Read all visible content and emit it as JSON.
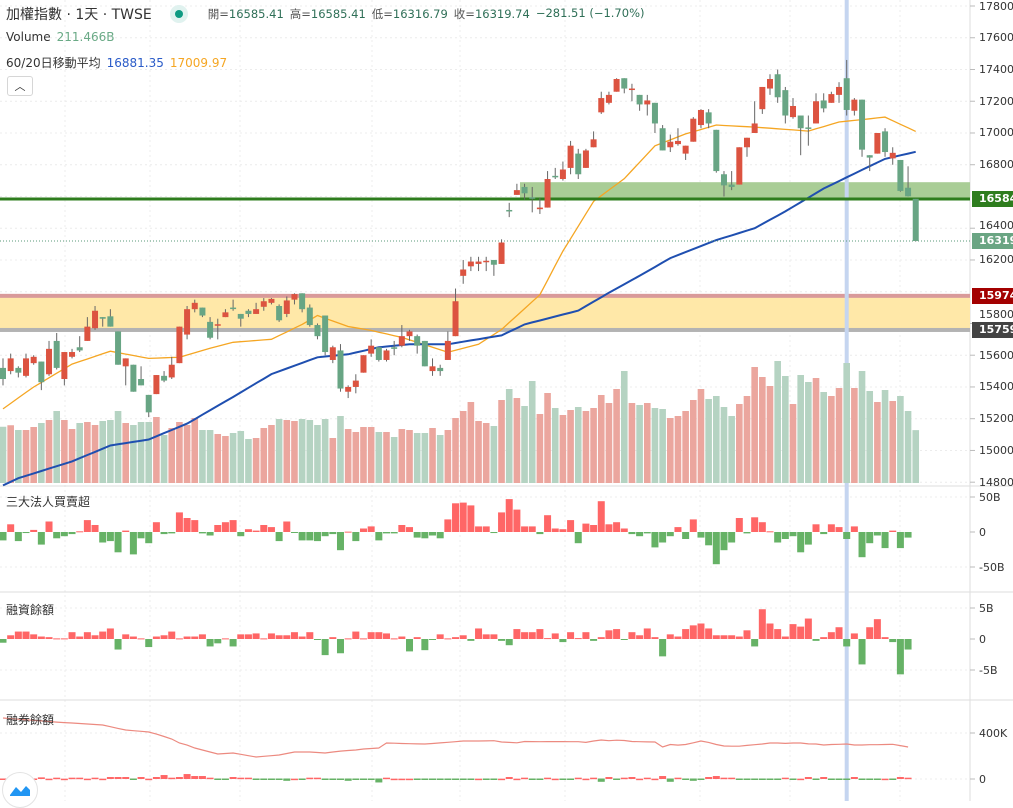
{
  "header": {
    "title": "加權指數 · 1天 · TWSE",
    "open_label": "開=",
    "open": "16585.41",
    "high_label": "高=",
    "high": "16585.41",
    "low_label": "低=",
    "low": "16316.79",
    "close_label": "收=",
    "close": "16319.74",
    "change": "−281.51 (−1.70%)",
    "volume_label": "Volume",
    "volume": "211.466B",
    "ma_label": "60/20日移動平均",
    "ma60": "16881.35",
    "ma20": "17009.97",
    "collapse_icon": "chevron-up-icon"
  },
  "colors": {
    "up": "#dc5340",
    "down": "#68a584",
    "vol_up": "#eba69e",
    "vol_down": "#b5d3c2",
    "ma60": "#1f4fb0",
    "ma20": "#f5a623",
    "inst_up": "#ff6666",
    "inst_down": "#66b266",
    "support": "#2e7d1e",
    "zone": "#ffe8a8"
  },
  "panes": {
    "inst_label": "三大法人買賣超",
    "margin_label": "融資餘額",
    "short_label": "融券餘額"
  },
  "price_axis": [
    "17800.00",
    "17600.00",
    "17400.00",
    "17200.00",
    "17000.00",
    "16800.00",
    "16400.00",
    "16200.00",
    "15800.00",
    "15600.00",
    "15400.00",
    "15200.00",
    "15000.00",
    "14800.00"
  ],
  "inst_axis": [
    "50B",
    "0",
    "-50B"
  ],
  "margin_axis": [
    "5B",
    "0",
    "-5B"
  ],
  "short_axis": [
    "400K",
    "0"
  ],
  "badges": [
    {
      "text": "16584.",
      "price": 16584,
      "color": "#2e7d1e"
    },
    {
      "text": "16319.",
      "price": 16319.74,
      "color": "#6aa583"
    },
    {
      "text": "15974.",
      "price": 15974,
      "color": "#a30000"
    },
    {
      "text": "15759.",
      "price": 15759,
      "color": "#434343"
    }
  ],
  "chart_data": {
    "type": "candlestick",
    "price_range": [
      14800,
      17800
    ],
    "levels": {
      "support": 16584,
      "support_zone": [
        16584,
        16690
      ],
      "zone": [
        15759,
        15974
      ],
      "last": 16319.74
    },
    "highlight_index": 110,
    "ohlc": [
      [
        15520,
        15580,
        15410,
        15450
      ],
      [
        15500,
        15610,
        15480,
        15580
      ],
      [
        15520,
        15530,
        15460,
        15490
      ],
      [
        15470,
        15610,
        15460,
        15580
      ],
      [
        15550,
        15600,
        15540,
        15590
      ],
      [
        15560,
        15560,
        15380,
        15430
      ],
      [
        15480,
        15690,
        15470,
        15640
      ],
      [
        15690,
        15740,
        15510,
        15520
      ],
      [
        15450,
        15620,
        15410,
        15620
      ],
      [
        15590,
        15640,
        15580,
        15620
      ],
      [
        15650,
        15720,
        15620,
        15630
      ],
      [
        15690,
        15840,
        15690,
        15780
      ],
      [
        15770,
        15910,
        15760,
        15880
      ],
      [
        15840,
        15840,
        15780,
        15830
      ],
      [
        15845,
        15890,
        15780,
        15780
      ],
      [
        15750,
        15750,
        15540,
        15540
      ],
      [
        15530,
        15580,
        15410,
        15580
      ],
      [
        15540,
        15540,
        15370,
        15370
      ],
      [
        15450,
        15530,
        15410,
        15410
      ],
      [
        15350,
        15350,
        15210,
        15240
      ],
      [
        15355,
        15475,
        15355,
        15475
      ],
      [
        15470,
        15500,
        15430,
        15440
      ],
      [
        15460,
        15590,
        15450,
        15540
      ],
      [
        15550,
        15780,
        15550,
        15780
      ],
      [
        15730,
        15910,
        15700,
        15890
      ],
      [
        15890,
        15950,
        15870,
        15930
      ],
      [
        15900,
        15900,
        15840,
        15850
      ],
      [
        15810,
        15840,
        15700,
        15710
      ],
      [
        15790,
        15830,
        15700,
        15795
      ],
      [
        15840,
        15890,
        15840,
        15870
      ],
      [
        15900,
        15950,
        15880,
        15895
      ],
      [
        15860,
        15860,
        15780,
        15830
      ],
      [
        15880,
        15890,
        15840,
        15860
      ],
      [
        15860,
        15930,
        15860,
        15890
      ],
      [
        15905,
        15960,
        15880,
        15940
      ],
      [
        15930,
        15960,
        15920,
        15955
      ],
      [
        15910,
        15920,
        15810,
        15820
      ],
      [
        15860,
        15970,
        15840,
        15945
      ],
      [
        15950,
        15990,
        15920,
        15985
      ],
      [
        15990,
        15990,
        15870,
        15890
      ],
      [
        15900,
        15920,
        15780,
        15790
      ],
      [
        15790,
        15800,
        15700,
        15720
      ],
      [
        15850,
        15850,
        15600,
        15620
      ],
      [
        15570,
        15660,
        15550,
        15650
      ],
      [
        15630,
        15670,
        15370,
        15390
      ],
      [
        15370,
        15410,
        15330,
        15400
      ],
      [
        15400,
        15480,
        15360,
        15440
      ],
      [
        15490,
        15600,
        15490,
        15600
      ],
      [
        15610,
        15700,
        15590,
        15660
      ],
      [
        15650,
        15650,
        15560,
        15570
      ],
      [
        15570,
        15640,
        15560,
        15630
      ],
      [
        15650,
        15690,
        15600,
        15640
      ],
      [
        15660,
        15790,
        15650,
        15720
      ],
      [
        15720,
        15760,
        15690,
        15750
      ],
      [
        15720,
        15730,
        15610,
        15660
      ],
      [
        15690,
        15690,
        15530,
        15530
      ],
      [
        15500,
        15580,
        15470,
        15530
      ],
      [
        15520,
        15540,
        15470,
        15500
      ],
      [
        15570,
        15750,
        15570,
        15690
      ],
      [
        15720,
        16020,
        15720,
        15940
      ],
      [
        16100,
        16200,
        16050,
        16140
      ],
      [
        16160,
        16220,
        16130,
        16190
      ],
      [
        16175,
        16220,
        16130,
        16190
      ],
      [
        16190,
        16220,
        16130,
        16195
      ],
      [
        16200,
        16200,
        16100,
        16170
      ],
      [
        16175,
        16330,
        16175,
        16310
      ],
      [
        16515,
        16560,
        16470,
        16510
      ],
      [
        16610,
        16680,
        16610,
        16640
      ],
      [
        16660,
        16680,
        16580,
        16620
      ],
      [
        16595,
        16660,
        16500,
        16590
      ],
      [
        16520,
        16590,
        16490,
        16530
      ],
      [
        16530,
        16760,
        16530,
        16710
      ],
      [
        16730,
        16780,
        16710,
        16725
      ],
      [
        16710,
        16820,
        16700,
        16770
      ],
      [
        16780,
        16950,
        16740,
        16920
      ],
      [
        16870,
        16900,
        16710,
        16740
      ],
      [
        16780,
        16900,
        16780,
        16890
      ],
      [
        16910,
        17010,
        16910,
        16960
      ],
      [
        17130,
        17260,
        17120,
        17220
      ],
      [
        17190,
        17260,
        17180,
        17240
      ],
      [
        17260,
        17345,
        17260,
        17340
      ],
      [
        17345,
        17345,
        17250,
        17280
      ],
      [
        17275,
        17310,
        17200,
        17280
      ],
      [
        17240,
        17240,
        17140,
        17180
      ],
      [
        17180,
        17240,
        17110,
        17205
      ],
      [
        17190,
        17190,
        17000,
        17060
      ],
      [
        17030,
        17050,
        16890,
        16890
      ],
      [
        16910,
        16990,
        16880,
        16945
      ],
      [
        16930,
        17030,
        16920,
        16950
      ],
      [
        16870,
        16920,
        16830,
        16920
      ],
      [
        16945,
        17100,
        16945,
        17090
      ],
      [
        17050,
        17150,
        17030,
        17145
      ],
      [
        17130,
        17150,
        17030,
        17060
      ],
      [
        17020,
        17020,
        16750,
        16760
      ],
      [
        16740,
        16760,
        16600,
        16670
      ],
      [
        16675,
        16760,
        16640,
        16660
      ],
      [
        16675,
        16910,
        16675,
        16910
      ],
      [
        16910,
        16970,
        16850,
        16970
      ],
      [
        17000,
        17200,
        17000,
        17060
      ],
      [
        17150,
        17290,
        17120,
        17290
      ],
      [
        17280,
        17370,
        17240,
        17340
      ],
      [
        17370,
        17400,
        17190,
        17225
      ],
      [
        17270,
        17290,
        17060,
        17110
      ],
      [
        17100,
        17220,
        17090,
        17170
      ],
      [
        17110,
        17110,
        16860,
        17030
      ],
      [
        17035,
        17110,
        16920,
        17030
      ],
      [
        17060,
        17250,
        17060,
        17200
      ],
      [
        17205,
        17250,
        17130,
        17155
      ],
      [
        17190,
        17260,
        17190,
        17245
      ],
      [
        17240,
        17320,
        17190,
        17290
      ],
      [
        17345,
        17460,
        17110,
        17145
      ],
      [
        17140,
        17220,
        17110,
        17210
      ],
      [
        17210,
        17210,
        16850,
        16895
      ],
      [
        16860,
        16860,
        16760,
        16845
      ],
      [
        16870,
        17000,
        16870,
        17000
      ],
      [
        17010,
        17030,
        16850,
        16880
      ],
      [
        16840,
        16910,
        16800,
        16875
      ],
      [
        16830,
        16830,
        16630,
        16635
      ],
      [
        16655,
        16790,
        16600,
        16601.25
      ],
      [
        16585.41,
        16585.41,
        16316.79,
        16319.74
      ]
    ],
    "volume_B": [
      225,
      231,
      212,
      212,
      224,
      240,
      252,
      288,
      252,
      216,
      240,
      244,
      232,
      248,
      252,
      288,
      240,
      232,
      244,
      244,
      264,
      192,
      220,
      244,
      232,
      260,
      212,
      212,
      196,
      188,
      200,
      208,
      176,
      180,
      220,
      232,
      256,
      252,
      248,
      256,
      252,
      232,
      256,
      180,
      268,
      216,
      204,
      224,
      224,
      204,
      204,
      184,
      216,
      212,
      200,
      200,
      220,
      192,
      212,
      260,
      288,
      324,
      248,
      240,
      228,
      332,
      376,
      340,
      308,
      408,
      276,
      360,
      300,
      272,
      292,
      304,
      288,
      300,
      352,
      320,
      376,
      448,
      320,
      312,
      320,
      300,
      296,
      260,
      268,
      288,
      332,
      376,
      336,
      348,
      304,
      268,
      316,
      348,
      464,
      424,
      388,
      488,
      428,
      316,
      432,
      404,
      420,
      364,
      348,
      380,
      480,
      380,
      448,
      368,
      324,
      372,
      328,
      348,
      288,
      211.466
    ],
    "ma20": [
      [
        0,
        15262
      ],
      [
        4,
        15400
      ],
      [
        9,
        15544
      ],
      [
        14,
        15625
      ],
      [
        19,
        15580
      ],
      [
        23,
        15587
      ],
      [
        27,
        15644
      ],
      [
        30,
        15681
      ],
      [
        35,
        15700
      ],
      [
        39,
        15794
      ],
      [
        41,
        15850
      ],
      [
        45,
        15781
      ],
      [
        48,
        15756
      ],
      [
        52,
        15712
      ],
      [
        58,
        15619
      ],
      [
        62,
        15669
      ],
      [
        65,
        15762
      ],
      [
        70,
        15981
      ],
      [
        73,
        16256
      ],
      [
        77,
        16569
      ],
      [
        81,
        16712
      ],
      [
        85,
        16919
      ],
      [
        89,
        16994
      ],
      [
        93,
        17050
      ],
      [
        98,
        17037
      ],
      [
        105,
        17012
      ],
      [
        109,
        17069
      ],
      [
        115,
        17100
      ],
      [
        119,
        17009.97
      ]
    ],
    "ma60": [
      [
        0,
        14780
      ],
      [
        2,
        14825
      ],
      [
        9,
        14931
      ],
      [
        14,
        15031
      ],
      [
        19,
        15069
      ],
      [
        24,
        15169
      ],
      [
        30,
        15337
      ],
      [
        35,
        15481
      ],
      [
        41,
        15587
      ],
      [
        45,
        15606
      ],
      [
        49,
        15650
      ],
      [
        53,
        15669
      ],
      [
        58,
        15669
      ],
      [
        65,
        15725
      ],
      [
        68,
        15794
      ],
      [
        75,
        15881
      ],
      [
        79,
        15994
      ],
      [
        83,
        16100
      ],
      [
        87,
        16212
      ],
      [
        93,
        16325
      ],
      [
        98,
        16400
      ],
      [
        102,
        16506
      ],
      [
        107,
        16650
      ],
      [
        111,
        16744
      ],
      [
        115,
        16837
      ],
      [
        119,
        16881.35
      ]
    ],
    "inst_net_B": [
      -12,
      11,
      -13,
      -1.5,
      3,
      -18,
      15,
      -9,
      -6,
      -3,
      1,
      17,
      10,
      -15,
      -13,
      -29,
      2,
      -32,
      -9,
      -16,
      14,
      -3,
      -2,
      28,
      20,
      17,
      -2,
      -5,
      10,
      14,
      17,
      -6,
      4,
      2,
      10,
      7,
      -13,
      15,
      -0.5,
      -12,
      -12,
      -13,
      -6,
      -3,
      -26,
      0.5,
      -13,
      5,
      8,
      -12,
      -2,
      -2,
      10,
      7,
      -8,
      -9,
      -5,
      -9,
      18,
      41,
      42,
      38,
      8,
      8,
      -1.5,
      28,
      47,
      32,
      8,
      8,
      -3,
      24,
      5,
      4,
      17,
      -16,
      12,
      10,
      44,
      11,
      14,
      5,
      -3,
      -6,
      -2,
      -22,
      -15,
      -6,
      7,
      -10,
      18,
      -8,
      -19,
      -46,
      -26,
      -15,
      20,
      -2,
      21,
      14,
      1,
      -15,
      -10,
      -6,
      -29,
      -18,
      11,
      -3,
      11,
      7,
      -10,
      8,
      -36,
      -16,
      -5,
      -23,
      2,
      -23,
      -8,
      null
    ],
    "margin_change_B": [
      -0.6,
      0.6,
      1.2,
      1.2,
      0.75,
      0.4,
      0.3,
      0.1,
      0.1,
      1.1,
      0.4,
      1.1,
      0.6,
      1.2,
      1.7,
      -1.7,
      0.75,
      0.4,
      0.1,
      -1.3,
      0.4,
      0.6,
      1.2,
      0.1,
      0.4,
      0.4,
      0.75,
      -1.2,
      -0.7,
      0.1,
      -1.2,
      0.75,
      0.75,
      0.9,
      0.1,
      0.9,
      0.6,
      0.6,
      1.1,
      0.4,
      1.1,
      -0.1,
      -2.6,
      0.3,
      -2.3,
      0.1,
      1.2,
      0.1,
      1.1,
      1.1,
      0.9,
      0.1,
      0.4,
      -2.0,
      0.3,
      -1.8,
      -0.1,
      0.75,
      0.1,
      0.3,
      0.6,
      -0.3,
      1.7,
      0.75,
      0.75,
      -0.3,
      -1.0,
      1.6,
      1.1,
      1.1,
      1.6,
      0.15,
      0.9,
      -0.5,
      1.1,
      0.15,
      1.1,
      -0.3,
      0.3,
      1.4,
      1.6,
      -0.1,
      1.1,
      0.6,
      1.7,
      0.3,
      -2.8,
      0.75,
      0.4,
      1.6,
      2.2,
      2.5,
      1.7,
      0.6,
      0.6,
      0.6,
      0.4,
      1.4,
      -1.2,
      4.8,
      2.5,
      1.6,
      0.4,
      2.4,
      2.0,
      3.3,
      -0.3,
      0.3,
      1.1,
      1.9,
      -1.2,
      0.9,
      -4.1,
      1.9,
      3.2,
      0.3,
      -0.5,
      -5.7,
      -1.7,
      null
    ],
    "short_balance_K": [
      530,
      525,
      520,
      515,
      510,
      505,
      500,
      495,
      490,
      487,
      483,
      478,
      474,
      470,
      455,
      440,
      426,
      420,
      415,
      409,
      390,
      370,
      348,
      313,
      295,
      270,
      252,
      235,
      217,
      222,
      226,
      215,
      203,
      191,
      197,
      203,
      209,
      222,
      235,
      235,
      235,
      230,
      226,
      235,
      243,
      248,
      252,
      261,
      265,
      270,
      313,
      311,
      309,
      307,
      305,
      304,
      309,
      314,
      319,
      324,
      330,
      330,
      330,
      331,
      333,
      322,
      318,
      315,
      326,
      325,
      324,
      325,
      325,
      325,
      324,
      324,
      318,
      330,
      339,
      333,
      337,
      335,
      326,
      324,
      323,
      322,
      278,
      300,
      295,
      300,
      315,
      330,
      318,
      300,
      287,
      285,
      285,
      292,
      298,
      304,
      313,
      313,
      310,
      313,
      313,
      305,
      304,
      296,
      300,
      302,
      304,
      296,
      296,
      298,
      298,
      300,
      302,
      290,
      278,
      null
    ],
    "short_change_K": [
      0,
      0,
      0,
      0,
      0,
      5,
      1,
      4,
      1,
      4,
      4,
      1,
      4,
      1,
      6,
      6,
      6,
      -1,
      6,
      1,
      6,
      12,
      4,
      6,
      15,
      9,
      9,
      4,
      -4,
      -1,
      6,
      4,
      4,
      -1,
      -4,
      -4,
      -1,
      -7,
      1,
      -1,
      4,
      4,
      -4,
      -1,
      -4,
      -7,
      -1,
      -1,
      -4,
      -12,
      4,
      1,
      1,
      1,
      -1,
      -4,
      -1,
      -1,
      -1,
      -1,
      -1,
      -1,
      1,
      -1,
      -1,
      1,
      6,
      1,
      4,
      -4,
      -1,
      4,
      1,
      -1,
      -1,
      4,
      1,
      4,
      -10,
      6,
      -4,
      4,
      6,
      1,
      4,
      1,
      9,
      -10,
      4,
      -1,
      -7,
      -4,
      6,
      9,
      4,
      4,
      -1,
      -4,
      -4,
      -1,
      -4,
      -1,
      4,
      -4,
      1,
      6,
      -1,
      6,
      -1,
      -1,
      -1,
      6,
      -1,
      -1,
      -1,
      1,
      -4,
      6,
      4,
      null
    ]
  }
}
